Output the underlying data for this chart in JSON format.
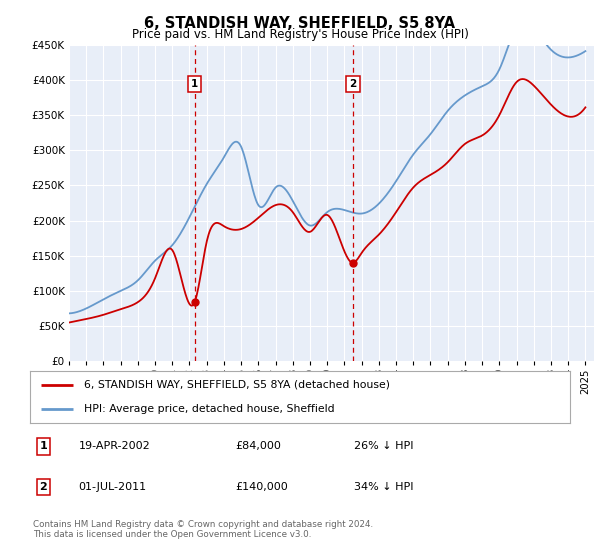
{
  "title": "6, STANDISH WAY, SHEFFIELD, S5 8YA",
  "subtitle": "Price paid vs. HM Land Registry's House Price Index (HPI)",
  "ytick_values": [
    0,
    50000,
    100000,
    150000,
    200000,
    250000,
    300000,
    350000,
    400000,
    450000
  ],
  "ylim": [
    0,
    450000
  ],
  "xlim_start": 1995.0,
  "xlim_end": 2025.5,
  "background_color": "#e8eef8",
  "red_line_color": "#cc0000",
  "blue_line_color": "#6699cc",
  "vline_color": "#cc0000",
  "transaction1": {
    "date_num": 2002.3,
    "price": 84000,
    "label": "1",
    "date_str": "19-APR-2002",
    "pct": "26% ↓ HPI"
  },
  "transaction2": {
    "date_num": 2011.5,
    "price": 140000,
    "label": "2",
    "date_str": "01-JUL-2011",
    "pct": "34% ↓ HPI"
  },
  "legend_line1": "6, STANDISH WAY, SHEFFIELD, S5 8YA (detached house)",
  "legend_line2": "HPI: Average price, detached house, Sheffield",
  "footer": "Contains HM Land Registry data © Crown copyright and database right 2024.\nThis data is licensed under the Open Government Licence v3.0.",
  "hpi_years": [
    1995,
    1996,
    1997,
    1998,
    1999,
    2000,
    2001,
    2002,
    2003,
    2004,
    2005,
    2006,
    2007,
    2008,
    2009,
    2010,
    2011,
    2012,
    2013,
    2014,
    2015,
    2016,
    2017,
    2018,
    2019,
    2020,
    2021,
    2022,
    2023,
    2024,
    2025
  ],
  "hpi_values": [
    68000,
    75000,
    88000,
    100000,
    115000,
    143000,
    165000,
    205000,
    252000,
    290000,
    305000,
    222000,
    247000,
    228000,
    193000,
    212000,
    215000,
    210000,
    224000,
    256000,
    294000,
    323000,
    356000,
    378000,
    391000,
    415000,
    475000,
    473000,
    443000,
    432000,
    441000
  ],
  "prop_years": [
    1995,
    1996,
    1997,
    1998,
    1999,
    2000,
    2001,
    2002.3,
    2003,
    2004,
    2005,
    2006,
    2007,
    2008,
    2009,
    2010,
    2011.5,
    2012,
    2013,
    2014,
    2015,
    2016,
    2017,
    2018,
    2019,
    2020,
    2021,
    2022,
    2023,
    2024,
    2025
  ],
  "prop_values": [
    55000,
    60000,
    66000,
    74000,
    84000,
    118000,
    158000,
    84000,
    170000,
    192000,
    188000,
    204000,
    222000,
    212000,
    184000,
    208000,
    140000,
    154000,
    180000,
    212000,
    247000,
    265000,
    283000,
    309000,
    321000,
    350000,
    397000,
    392000,
    365000,
    348000,
    361000
  ]
}
